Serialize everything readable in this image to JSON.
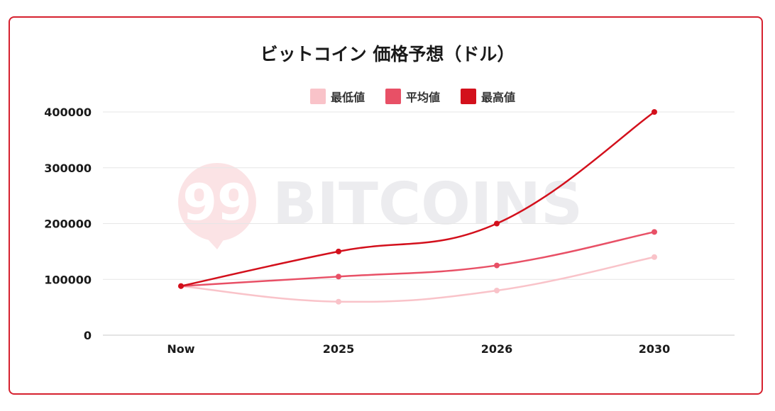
{
  "chart_data": {
    "type": "line",
    "title": "ビットコイン 価格予想（ドル）",
    "categories": [
      "Now",
      "2025",
      "2026",
      "2030"
    ],
    "series": [
      {
        "name": "最低値",
        "color": "#f9c3c9",
        "values": [
          88000,
          60000,
          80000,
          140000
        ]
      },
      {
        "name": "平均値",
        "color": "#e85066",
        "values": [
          88000,
          105000,
          125000,
          185000
        ]
      },
      {
        "name": "最高値",
        "color": "#d3101c",
        "values": [
          88000,
          150000,
          200000,
          400000
        ]
      }
    ],
    "yticks": [
      "0",
      "100000",
      "200000",
      "300000",
      "400000"
    ],
    "ylim": [
      0,
      400000
    ],
    "grid": true,
    "legend": "top-center"
  },
  "watermark": {
    "badge_text": "99",
    "brand_text": "BITCOINS",
    "color": "#ececef",
    "badge_color": "#fbe3e5"
  }
}
